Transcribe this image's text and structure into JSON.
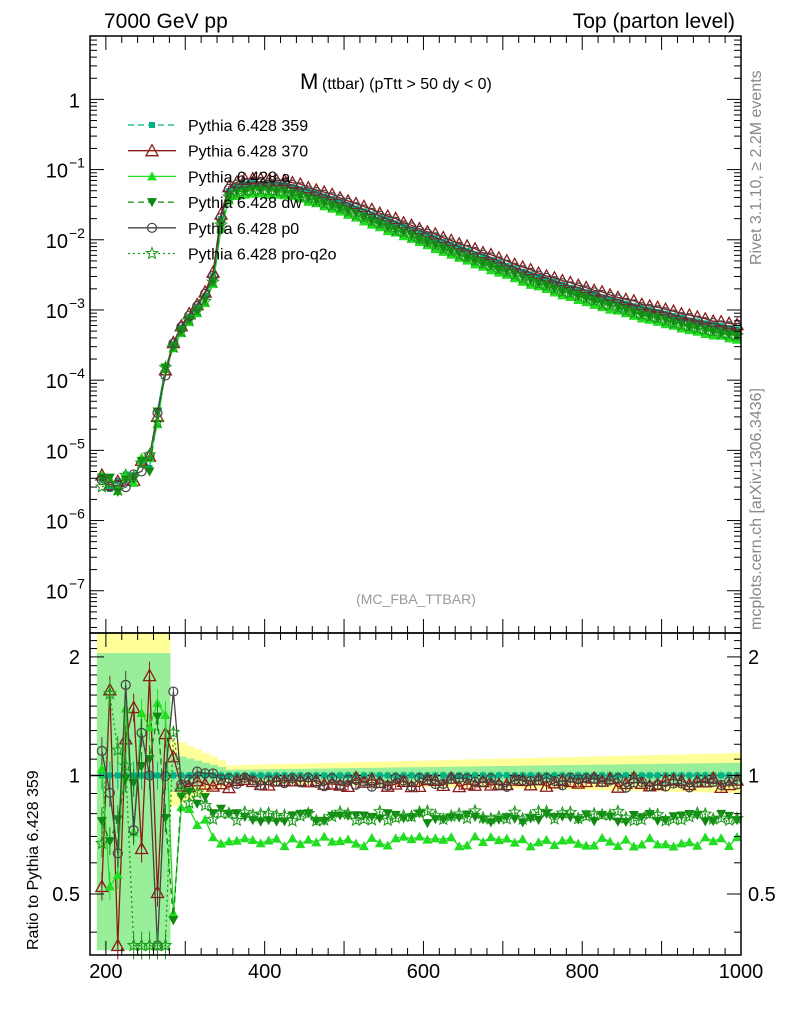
{
  "header": {
    "left": "7000 GeV pp",
    "right": "Top (parton level)"
  },
  "side_labels": {
    "rivet": "Rivet 3.1.10, ≥ 2.2M events",
    "mcplots": "mcplots.cern.ch [arXiv:1306.3436]"
  },
  "chart_data": {
    "type": "line",
    "title_main": "M",
    "title_rest": "(ttbar) (pTtt > 50 dy < 0)",
    "watermark": "(MC_FBA_TTBAR)",
    "x_ticks": [
      "200",
      "400",
      "600",
      "800",
      "1000"
    ],
    "xlim": [
      180,
      1000
    ],
    "main_ylim": [
      2.5e-08,
      8
    ],
    "main_y_scale": "log",
    "main_y_ticks": [
      "10^-7",
      "10^-6",
      "10^-5",
      "10^-4",
      "10^-3",
      "10^-2",
      "10^-1",
      "1"
    ],
    "ratio_ylabel": "Ratio to Pythia 6.428 359",
    "ratio_ylim": [
      0.35,
      2.3
    ],
    "ratio_y_scale": "log",
    "ratio_y_ticks": [
      "0.5",
      "1",
      "2"
    ],
    "legend_position": "top-left",
    "series": [
      {
        "name": "Pythia 6.428 359",
        "color": "#00b386",
        "dash": "dashed",
        "marker": "square-filled",
        "norm": 1.0,
        "ratio_mid": 1.0
      },
      {
        "name": "Pythia 6.428 370",
        "color": "#8b1a1a",
        "dash": "solid",
        "marker": "triangle-open",
        "norm": 1.15,
        "ratio_mid": 0.96
      },
      {
        "name": "Pythia 6.428 a",
        "color": "#22dd22",
        "dash": "solid",
        "marker": "triangle-filled",
        "norm": 0.72,
        "ratio_mid": 0.68
      },
      {
        "name": "Pythia 6.428 dw",
        "color": "#118811",
        "dash": "dashed",
        "marker": "triangle-down-filled",
        "norm": 0.82,
        "ratio_mid": 0.78
      },
      {
        "name": "Pythia 6.428 p0",
        "color": "#444444",
        "dash": "solid",
        "marker": "circle-open",
        "norm": 1.05,
        "ratio_mid": 0.96
      },
      {
        "name": "Pythia 6.428 pro-q2o",
        "color": "#1a9a1a",
        "dash": "dotted",
        "marker": "star-open",
        "norm": 0.8,
        "ratio_mid": 0.79
      }
    ],
    "reference_curve": {
      "x": [
        195,
        205,
        215,
        225,
        235,
        245,
        255,
        265,
        275,
        285,
        295,
        305,
        315,
        325,
        335,
        345,
        355,
        365,
        375,
        385,
        395,
        405,
        415,
        425,
        440,
        460,
        480,
        500,
        520,
        540,
        560,
        580,
        600,
        620,
        640,
        660,
        680,
        700,
        720,
        740,
        760,
        780,
        800,
        820,
        840,
        860,
        880,
        900,
        920,
        940,
        960,
        980,
        995
      ],
      "y": [
        3.5e-06,
        3.2e-06,
        3.4e-06,
        3.5e-06,
        4e-06,
        6.5e-06,
        7e-06,
        3e-05,
        0.00013,
        0.00032,
        0.00055,
        0.0008,
        0.0011,
        0.0016,
        0.003,
        0.02,
        0.05,
        0.058,
        0.062,
        0.063,
        0.063,
        0.062,
        0.061,
        0.06,
        0.055,
        0.047,
        0.04,
        0.033,
        0.027,
        0.022,
        0.018,
        0.0148,
        0.0121,
        0.0099,
        0.0081,
        0.0066,
        0.0055,
        0.0045,
        0.0037,
        0.0031,
        0.0026,
        0.0022,
        0.0019,
        0.0016,
        0.00138,
        0.00119,
        0.00103,
        0.0009,
        0.00079,
        0.0007,
        0.00063,
        0.00057,
        0.00053
      ]
    }
  }
}
